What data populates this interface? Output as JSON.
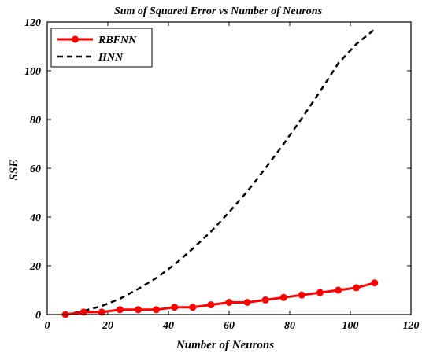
{
  "chart_data": {
    "type": "line",
    "title": "Sum of Squared Error vs Number of Neurons",
    "xlabel": "Number of Neurons",
    "ylabel": "SSE",
    "xlim": [
      0,
      120
    ],
    "ylim": [
      0,
      120
    ],
    "xticks": [
      0,
      20,
      40,
      60,
      80,
      100,
      120
    ],
    "yticks": [
      0,
      20,
      40,
      60,
      80,
      100,
      120
    ],
    "grid": false,
    "legend_position": "top-left",
    "series": [
      {
        "name": "RBFNN",
        "color": "#ff0000",
        "style": "solid-with-circle-markers",
        "x": [
          6,
          12,
          18,
          24,
          30,
          36,
          42,
          48,
          54,
          60,
          66,
          72,
          78,
          84,
          90,
          96,
          102,
          108
        ],
        "y": [
          0,
          1,
          1,
          2,
          2,
          2,
          3,
          3,
          4,
          5,
          5,
          6,
          7,
          8,
          9,
          10,
          11,
          13
        ]
      },
      {
        "name": "HNN",
        "color": "#000000",
        "style": "dashed",
        "x": [
          6,
          12,
          18,
          24,
          30,
          36,
          42,
          48,
          54,
          60,
          66,
          72,
          78,
          84,
          90,
          96,
          102,
          108
        ],
        "y": [
          0,
          1.5,
          3.5,
          6.5,
          10.5,
          15,
          20.5,
          27,
          34,
          42,
          50.5,
          60,
          70,
          80.5,
          91.5,
          103,
          111,
          117
        ]
      }
    ]
  }
}
